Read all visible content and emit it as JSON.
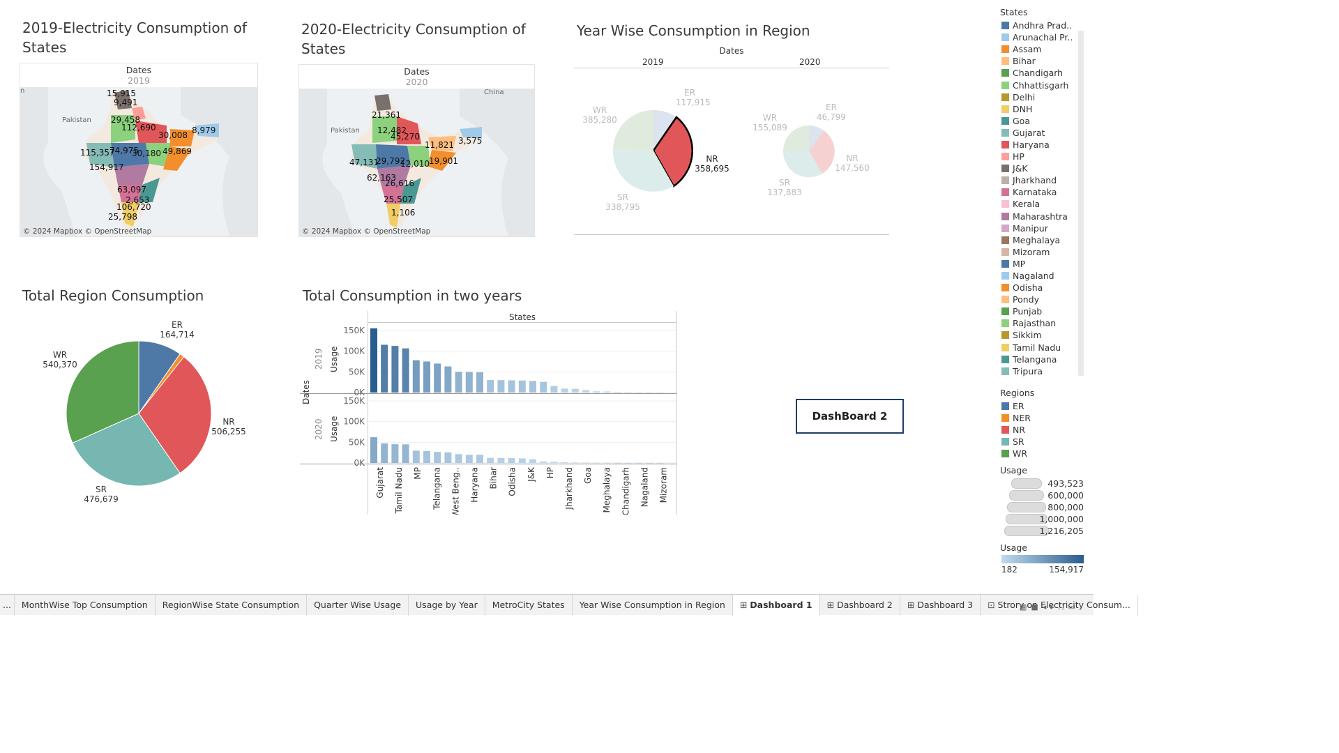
{
  "map2019": {
    "title": "2019-Electricity Consumption of States",
    "header": "Dates",
    "year": "2019",
    "credit": "© 2024 Mapbox © OpenStreetMap",
    "labels": [
      "15,915",
      "9,491",
      "29,458",
      "112,690",
      "30,008",
      "8,979",
      "115,357",
      "74,975",
      "30,180",
      "49,869",
      "154,917",
      "63,097",
      "2,653",
      "106,720",
      "25,798",
      "n",
      "Pakistan"
    ]
  },
  "map2020": {
    "title": "2020-Electricity Consumption of States",
    "header": "Dates",
    "year": "2020",
    "credit": "© 2024 Mapbox © OpenStreetMap",
    "labels": [
      "21,361",
      "12,482",
      "45,270",
      "11,821",
      "3,575",
      "47,131",
      "29,792",
      "12,010",
      "19,901",
      "62,163",
      "26,616",
      "25,507",
      "1,106",
      "Pakistan",
      "China"
    ]
  },
  "yearwise": {
    "title": "Year Wise Consumption in Region",
    "header": "Dates",
    "col2019": "2019",
    "col2020": "2020",
    "pie2019": [
      {
        "region": "ER",
        "value": "117,915"
      },
      {
        "region": "NR",
        "value": "358,695"
      },
      {
        "region": "SR",
        "value": "338,795"
      },
      {
        "region": "WR",
        "value": "385,280"
      }
    ],
    "pie2020": [
      {
        "region": "ER",
        "value": "46,799"
      },
      {
        "region": "NR",
        "value": "147,560"
      },
      {
        "region": "SR",
        "value": "137,883"
      },
      {
        "region": "WR",
        "value": "155,089"
      }
    ]
  },
  "regionTotal": {
    "title": "Total Region Consumption",
    "slices": [
      {
        "region": "ER",
        "value": "164,714"
      },
      {
        "region": "NR",
        "value": "506,255"
      },
      {
        "region": "SR",
        "value": "476,679"
      },
      {
        "region": "WR",
        "value": "540,370"
      }
    ]
  },
  "totalTwoYears": {
    "title": "Total Consumption in two years",
    "header": "States",
    "rowAxis": "Dates",
    "row2019": "2019",
    "row2020": "2020",
    "usage": "Usage",
    "ticks": [
      "150K",
      "100K",
      "50K",
      "0K"
    ],
    "xlabels": [
      "Gujarat",
      "Tamil Nadu",
      "MP",
      "Telangana",
      "West Beng..",
      "Haryana",
      "Bihar",
      "Odisha",
      "J&K",
      "HP",
      "Jharkhand",
      "Goa",
      "Meghalaya",
      "Chandigarh",
      "Nagaland",
      "Mizoram"
    ]
  },
  "chart_data": [
    {
      "type": "bar",
      "title": "Total Consumption in two years",
      "ylabel": "Usage",
      "ylim": [
        0,
        160000
      ],
      "series": [
        {
          "name": "2019",
          "values": [
            154917,
            115357,
            112690,
            106720,
            78000,
            74975,
            70000,
            63097,
            50000,
            49869,
            49000,
            30180,
            30008,
            29458,
            29000,
            28000,
            25798,
            15915,
            9491,
            8979,
            6000,
            3000,
            2653,
            1500,
            1000,
            600,
            400,
            200
          ]
        },
        {
          "name": "2020",
          "values": [
            62163,
            47131,
            45270,
            45000,
            29792,
            29000,
            26616,
            25507,
            21361,
            19901,
            20000,
            12482,
            12010,
            11821,
            11000,
            9000,
            3575,
            3000,
            1800,
            1106,
            900,
            600,
            400,
            300,
            250,
            200,
            190,
            182
          ]
        }
      ]
    },
    {
      "type": "pie",
      "title": "Total Region Consumption",
      "categories": [
        "ER",
        "NER",
        "NR",
        "SR",
        "WR"
      ],
      "values": [
        164714,
        18000,
        506255,
        476679,
        540370
      ]
    }
  ],
  "legend": {
    "statesTitle": "States",
    "states": [
      {
        "name": "Andhra Prad..",
        "color": "#4e79a7"
      },
      {
        "name": "Arunachal Pr..",
        "color": "#a0cbe8"
      },
      {
        "name": "Assam",
        "color": "#f28e2b"
      },
      {
        "name": "Bihar",
        "color": "#ffbe7d"
      },
      {
        "name": "Chandigarh",
        "color": "#59a14f"
      },
      {
        "name": "Chhattisgarh",
        "color": "#8cd17d"
      },
      {
        "name": "Delhi",
        "color": "#b6992d"
      },
      {
        "name": "DNH",
        "color": "#f1ce63"
      },
      {
        "name": "Goa",
        "color": "#499894"
      },
      {
        "name": "Gujarat",
        "color": "#86bcb6"
      },
      {
        "name": "Haryana",
        "color": "#e15759"
      },
      {
        "name": "HP",
        "color": "#ff9d9a"
      },
      {
        "name": "J&K",
        "color": "#79706e"
      },
      {
        "name": "Jharkhand",
        "color": "#bab0ac"
      },
      {
        "name": "Karnataka",
        "color": "#d37295"
      },
      {
        "name": "Kerala",
        "color": "#fabfd2"
      },
      {
        "name": "Maharashtra",
        "color": "#b07aa1"
      },
      {
        "name": "Manipur",
        "color": "#d4a6c8"
      },
      {
        "name": "Meghalaya",
        "color": "#9d7660"
      },
      {
        "name": "Mizoram",
        "color": "#d7b5a6"
      },
      {
        "name": "MP",
        "color": "#4e79a7"
      },
      {
        "name": "Nagaland",
        "color": "#a0cbe8"
      },
      {
        "name": "Odisha",
        "color": "#f28e2b"
      },
      {
        "name": "Pondy",
        "color": "#ffbe7d"
      },
      {
        "name": "Punjab",
        "color": "#59a14f"
      },
      {
        "name": "Rajasthan",
        "color": "#8cd17d"
      },
      {
        "name": "Sikkim",
        "color": "#b6992d"
      },
      {
        "name": "Tamil Nadu",
        "color": "#f1ce63"
      },
      {
        "name": "Telangana",
        "color": "#499894"
      },
      {
        "name": "Tripura",
        "color": "#86bcb6"
      }
    ],
    "regionsTitle": "Regions",
    "regions": [
      {
        "name": "ER",
        "color": "#4e79a7"
      },
      {
        "name": "NER",
        "color": "#f28e2b"
      },
      {
        "name": "NR",
        "color": "#e15759"
      },
      {
        "name": "SR",
        "color": "#76b7b2"
      },
      {
        "name": "WR",
        "color": "#59a14f"
      }
    ],
    "usageSizeTitle": "Usage",
    "usageSizes": [
      "493,523",
      "600,000",
      "800,000",
      "1,000,000",
      "1,216,205"
    ],
    "usageColorTitle": "Usage",
    "usageMin": "182",
    "usageMax": "154,917"
  },
  "button": {
    "label": "DashBoard 2"
  },
  "tabs": [
    {
      "label": "...",
      "icon": ""
    },
    {
      "label": "MonthWise Top Consumption",
      "icon": ""
    },
    {
      "label": "RegionWise State Consumption",
      "icon": ""
    },
    {
      "label": "Quarter Wise Usage",
      "icon": ""
    },
    {
      "label": "Usage by Year",
      "icon": ""
    },
    {
      "label": "MetroCity States",
      "icon": ""
    },
    {
      "label": "Year Wise Consumption in Region",
      "icon": ""
    },
    {
      "label": "Dashboard 1",
      "icon": "⊞"
    },
    {
      "label": "Dashboard 2",
      "icon": "⊞"
    },
    {
      "label": "Dashboard 3",
      "icon": "⊞"
    },
    {
      "label": "Strory on Electricity Consum...",
      "icon": "⊡"
    }
  ]
}
